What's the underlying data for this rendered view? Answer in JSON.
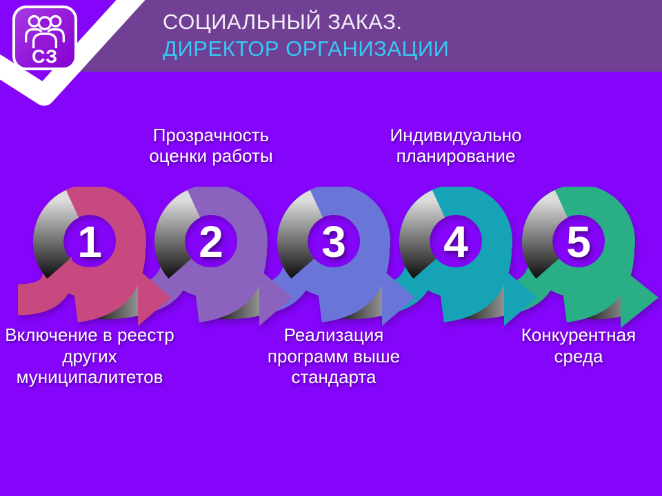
{
  "slide": {
    "header": {
      "title_line1": "СОЦИАЛЬНЫЙ ЗАКАЗ.",
      "title_line2": "ДИРЕКТОР ОРГАНИЗАЦИИ",
      "title_color": "#F4EEF9",
      "subtitle_color": "#36C9F5",
      "band_color": "#6F4094",
      "swoosh_color": "#FFFFFF",
      "logo": {
        "abbr": "СЗ",
        "icon": "people-group-icon"
      }
    },
    "background_color": "#8504FA",
    "steps": [
      {
        "number": "1",
        "color": "#C84A80",
        "label": "Включение в реестр других муниципалитетов",
        "label_lines": [
          "Включение в реестр",
          "других",
          "муниципалитетов"
        ],
        "label_position": "below"
      },
      {
        "number": "2",
        "color": "#8B63BF",
        "label": "Прозрачность оценки работы",
        "label_lines": [
          "Прозрачность",
          "оценки работы"
        ],
        "label_position": "above"
      },
      {
        "number": "3",
        "color": "#6B75D8",
        "label": "Реализация программ выше стандарта",
        "label_lines": [
          "Реализация",
          "программ выше",
          "стандарта"
        ],
        "label_position": "below"
      },
      {
        "number": "4",
        "color": "#12A3B6",
        "label": "Индивидуально планирование",
        "label_lines": [
          "Индивидуально",
          "планирование"
        ],
        "label_position": "above"
      },
      {
        "number": "5",
        "color": "#2BAE86",
        "label": "Конкурентная среда",
        "label_lines": [
          "Конкурентная",
          "среда"
        ],
        "label_position": "below"
      }
    ]
  }
}
